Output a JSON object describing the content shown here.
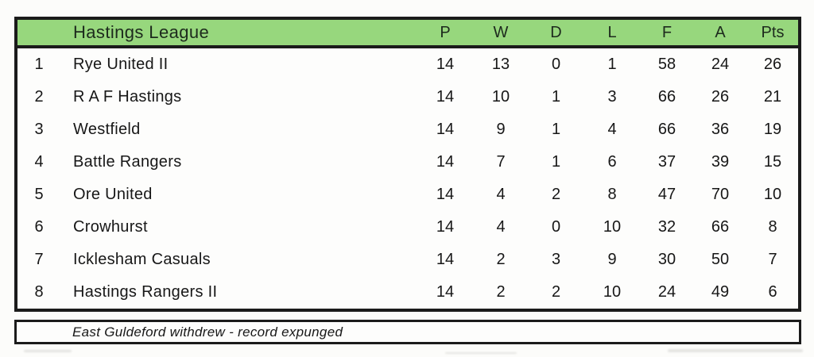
{
  "chart_data": {
    "type": "table",
    "title": "Hastings League",
    "columns": [
      "P",
      "W",
      "D",
      "L",
      "F",
      "A",
      "Pts"
    ],
    "row_fields": [
      "position",
      "team",
      "P",
      "W",
      "D",
      "L",
      "F",
      "A",
      "Pts"
    ],
    "rows": [
      [
        "1",
        "Rye United II",
        "14",
        "13",
        "0",
        "1",
        "58",
        "24",
        "26"
      ],
      [
        "2",
        "R A F Hastings",
        "14",
        "10",
        "1",
        "3",
        "66",
        "26",
        "21"
      ],
      [
        "3",
        "Westfield",
        "14",
        "9",
        "1",
        "4",
        "66",
        "36",
        "19"
      ],
      [
        "4",
        "Battle Rangers",
        "14",
        "7",
        "1",
        "6",
        "37",
        "39",
        "15"
      ],
      [
        "5",
        "Ore United",
        "14",
        "4",
        "2",
        "8",
        "47",
        "70",
        "10"
      ],
      [
        "6",
        "Crowhurst",
        "14",
        "4",
        "0",
        "10",
        "32",
        "66",
        "8"
      ],
      [
        "7",
        "Icklesham Casuals",
        "14",
        "2",
        "3",
        "9",
        "30",
        "50",
        "7"
      ],
      [
        "8",
        "Hastings Rangers II",
        "14",
        "2",
        "2",
        "10",
        "24",
        "49",
        "6"
      ]
    ],
    "footnote": "East Guldeford withdrew - record expunged"
  },
  "colors": {
    "header_green": "#97d77d",
    "border_black": "#1b1b1b",
    "page_background": "#fcfcfa"
  }
}
